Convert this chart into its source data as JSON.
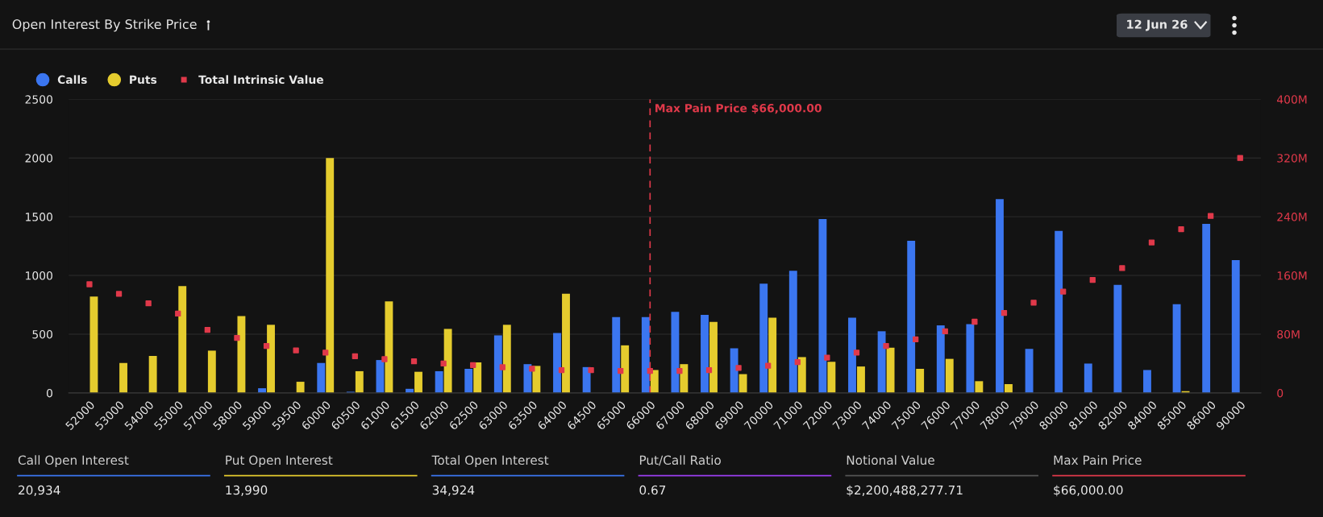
{
  "chart_data": {
    "type": "bar",
    "title": "Open Interest By Strike Price",
    "categories": [
      "52000",
      "53000",
      "54000",
      "55000",
      "57000",
      "58000",
      "59000",
      "59500",
      "60000",
      "60500",
      "61000",
      "61500",
      "62000",
      "62500",
      "63000",
      "63500",
      "64000",
      "64500",
      "65000",
      "66000",
      "67000",
      "68000",
      "69000",
      "70000",
      "71000",
      "72000",
      "73000",
      "74000",
      "75000",
      "76000",
      "77000",
      "78000",
      "79000",
      "80000",
      "81000",
      "82000",
      "84000",
      "85000",
      "86000",
      "90000"
    ],
    "series": [
      {
        "name": "Calls",
        "color": "#3b76f0",
        "values": [
          0,
          0,
          0,
          0,
          0,
          0,
          40,
          0,
          255,
          10,
          280,
          35,
          185,
          205,
          490,
          245,
          510,
          220,
          645,
          645,
          690,
          665,
          380,
          930,
          1040,
          1480,
          640,
          525,
          1295,
          575,
          585,
          1650,
          375,
          1380,
          250,
          920,
          195,
          755,
          1440,
          1130
        ]
      },
      {
        "name": "Puts",
        "color": "#e5cc2e",
        "values": [
          820,
          255,
          315,
          910,
          360,
          655,
          580,
          95,
          2000,
          185,
          780,
          180,
          545,
          260,
          580,
          230,
          845,
          0,
          405,
          195,
          245,
          605,
          160,
          640,
          305,
          265,
          225,
          385,
          205,
          290,
          100,
          75,
          0,
          0,
          0,
          0,
          0,
          15,
          0,
          0
        ]
      },
      {
        "name": "Total Intrinsic Value",
        "type": "scatter",
        "axis": "y2",
        "color": "#e0394a",
        "values": [
          148,
          135,
          122,
          108,
          86,
          75,
          64,
          58,
          55,
          50,
          46,
          43,
          40,
          38,
          35,
          33,
          31,
          31,
          30,
          30,
          30,
          31,
          34,
          37,
          42,
          48,
          55,
          64,
          73,
          84,
          97,
          109,
          123,
          138,
          154,
          170,
          205,
          223,
          241,
          320
        ]
      }
    ],
    "ylim": [
      0,
      2500
    ],
    "yticks": [
      0,
      500,
      1000,
      1500,
      2000,
      2500
    ],
    "y2lim": [
      0,
      400
    ],
    "y2ticks": [
      {
        "value": 0,
        "label": "0"
      },
      {
        "value": 80,
        "label": "80M"
      },
      {
        "value": 160,
        "label": "160M"
      },
      {
        "value": 240,
        "label": "240M"
      },
      {
        "value": 320,
        "label": "320M"
      },
      {
        "value": 400,
        "label": "400M"
      }
    ],
    "ref_lines": [
      {
        "axis": "x",
        "value": "66000",
        "label": "Max Pain Price $66,000.00",
        "color": "#e0394a",
        "line_style": "dashed"
      }
    ],
    "annotations": [
      "12 Jun 26",
      "Call Open Interest",
      "20,934",
      "Put Open Interest",
      "13,990",
      "Total Open Interest",
      "34,924",
      "Put/Call Ratio",
      "0.67",
      "Notional Value",
      "$2,200,488,277.71",
      "Max Pain Price",
      "$66,000.00"
    ],
    "grid": "y",
    "legend": "top left",
    "marker": "square"
  }
}
